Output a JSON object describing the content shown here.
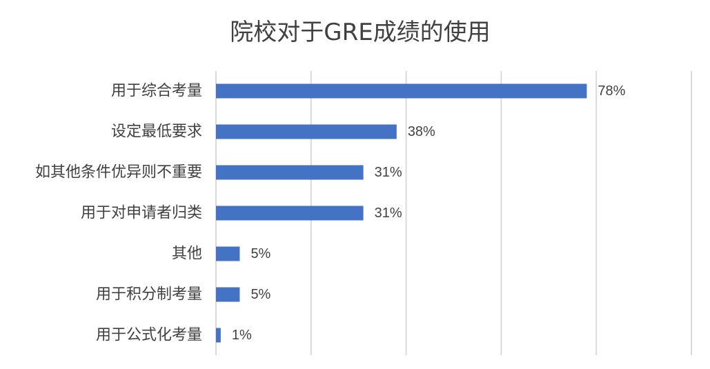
{
  "chart_data": {
    "type": "bar",
    "orientation": "horizontal",
    "title": "院校对于GRE成绩的使用",
    "categories": [
      "用于综合考量",
      "设定最低要求",
      "如其他条件优异则不重要",
      "用于对申请者归类",
      "其他",
      "用于积分制考量",
      "用于公式化考量"
    ],
    "values": [
      78,
      38,
      31,
      31,
      5,
      5,
      1
    ],
    "value_labels": [
      "78%",
      "38%",
      "31%",
      "31%",
      "5%",
      "5%",
      "1%"
    ],
    "xlim": [
      0,
      100
    ],
    "x_gridlines": [
      0,
      20,
      40,
      60,
      80,
      100
    ],
    "grid": true,
    "legend": "none",
    "bar_color": "#4472c4"
  }
}
